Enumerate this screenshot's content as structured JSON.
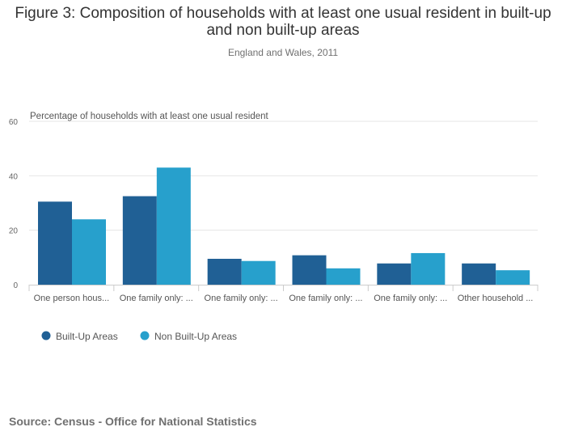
{
  "chart_data": {
    "type": "bar",
    "title": "Figure 3: Composition of households with at least one usual resident in built-up and non built-up areas",
    "subtitle": "England and Wales, 2011",
    "ylabel": "Percentage of households with at least one usual resident",
    "xlabel": "",
    "ylim": [
      0,
      60
    ],
    "yticks": [
      0,
      20,
      40,
      60
    ],
    "grid": true,
    "legend_position": "bottom-left",
    "categories": [
      "One person hous...",
      "One family only: ...",
      "One family only: ...",
      "One family only: ...",
      "One family only: ...",
      "Other household ..."
    ],
    "series": [
      {
        "name": "Built-Up Areas",
        "color": "#206095",
        "values": [
          30.5,
          32.5,
          9.5,
          10.8,
          7.8,
          7.8
        ]
      },
      {
        "name": "Non Built-Up Areas",
        "color": "#27A0CC",
        "values": [
          24,
          43,
          8.7,
          6,
          11.6,
          5.3
        ]
      }
    ]
  },
  "source": "Source: Census - Office for National Statistics"
}
